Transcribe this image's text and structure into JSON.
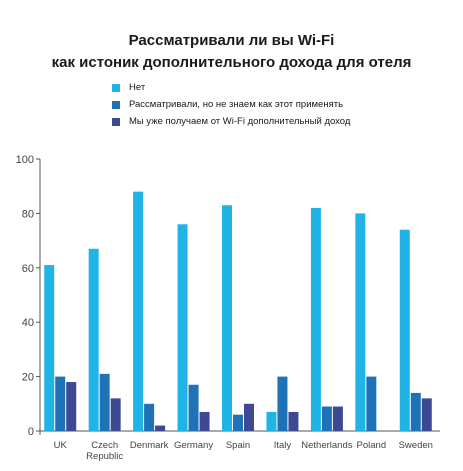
{
  "chart_data": {
    "type": "bar",
    "title_line1": "Рассматривали ли вы Wi-Fi",
    "title_line2": "как истоник дополнительного дохода для отеля",
    "categories": [
      "UK",
      "Czech Republic",
      "Denmark",
      "Germany",
      "Spain",
      "Italy",
      "Netherlands",
      "Poland",
      "Sweden"
    ],
    "category_lines": [
      [
        "UK"
      ],
      [
        "Czech",
        "Republic"
      ],
      [
        "Denmark"
      ],
      [
        "Germany"
      ],
      [
        "Spain"
      ],
      [
        "Italy"
      ],
      [
        "Netherlands"
      ],
      [
        "Poland"
      ],
      [
        "Sweden"
      ]
    ],
    "series": [
      {
        "name": "Нет",
        "color": "#1fb3e6",
        "values": [
          61,
          67,
          88,
          76,
          83,
          7,
          82,
          80,
          74
        ]
      },
      {
        "name": "Рассматривали, но не знаем как этот применять",
        "color": "#1e72b5",
        "values": [
          20,
          21,
          10,
          17,
          6,
          20,
          9,
          20,
          14
        ]
      },
      {
        "name": "Мы уже получаем от Wi-Fi дополнительный доход",
        "color": "#3d4a93",
        "values": [
          18,
          12,
          2,
          7,
          10,
          7,
          9,
          0,
          12
        ]
      }
    ],
    "ylim": [
      0,
      100
    ],
    "yticks": [
      0,
      20,
      40,
      60,
      80,
      100
    ],
    "legend_position": "top-left",
    "grid": false
  }
}
